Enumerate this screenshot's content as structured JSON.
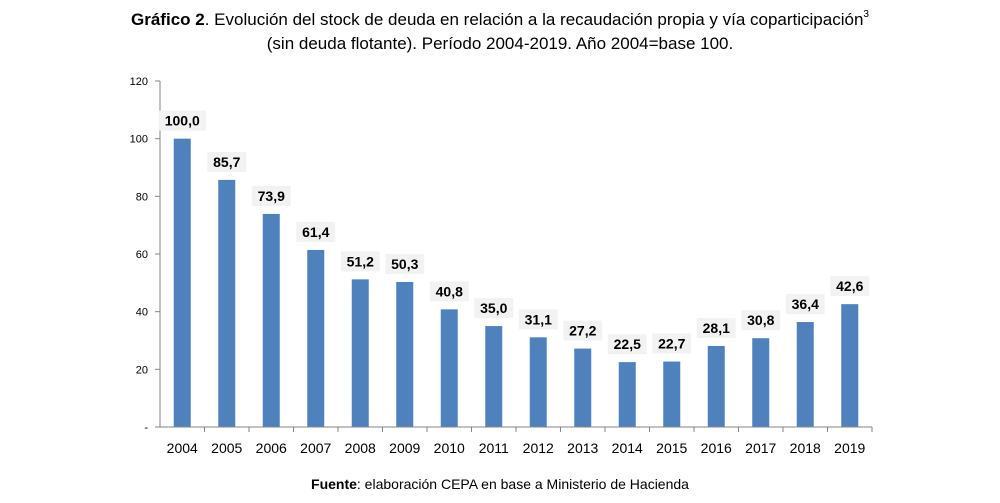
{
  "chart_data": {
    "type": "bar",
    "title_bold": "Gráfico 2",
    "title_line1": ". Evolución del stock de deuda en relación a la recaudación propia y vía coparticipación",
    "title_sup": "3",
    "title_line2": "(sin deuda flotante). Período 2004-2019. Año 2004=base 100.",
    "categories": [
      "2004",
      "2005",
      "2006",
      "2007",
      "2008",
      "2009",
      "2010",
      "2011",
      "2012",
      "2013",
      "2014",
      "2015",
      "2016",
      "2017",
      "2018",
      "2019"
    ],
    "values": [
      100.0,
      85.7,
      73.9,
      61.4,
      51.2,
      50.3,
      40.8,
      35.0,
      31.1,
      27.2,
      22.5,
      22.7,
      28.1,
      30.8,
      36.4,
      42.6
    ],
    "data_labels": [
      "100,0",
      "85,7",
      "73,9",
      "61,4",
      "51,2",
      "50,3",
      "40,8",
      "35,0",
      "31,1",
      "27,2",
      "22,5",
      "22,7",
      "28,1",
      "30,8",
      "36,4",
      "42,6"
    ],
    "y_ticks": [
      0,
      20,
      40,
      60,
      80,
      100,
      120
    ],
    "y_tick_labels": [
      "-",
      "20",
      "40",
      "60",
      "80",
      "100",
      "120"
    ],
    "ylim": [
      0,
      120
    ],
    "xlabel": "",
    "ylabel": "",
    "grid": false,
    "legend": false,
    "bar_color": "#4f81bd",
    "label_bg_color": "#f2f2f2"
  },
  "source": {
    "bold": "Fuente",
    "text": ": elaboración CEPA en base a Ministerio de Hacienda"
  }
}
